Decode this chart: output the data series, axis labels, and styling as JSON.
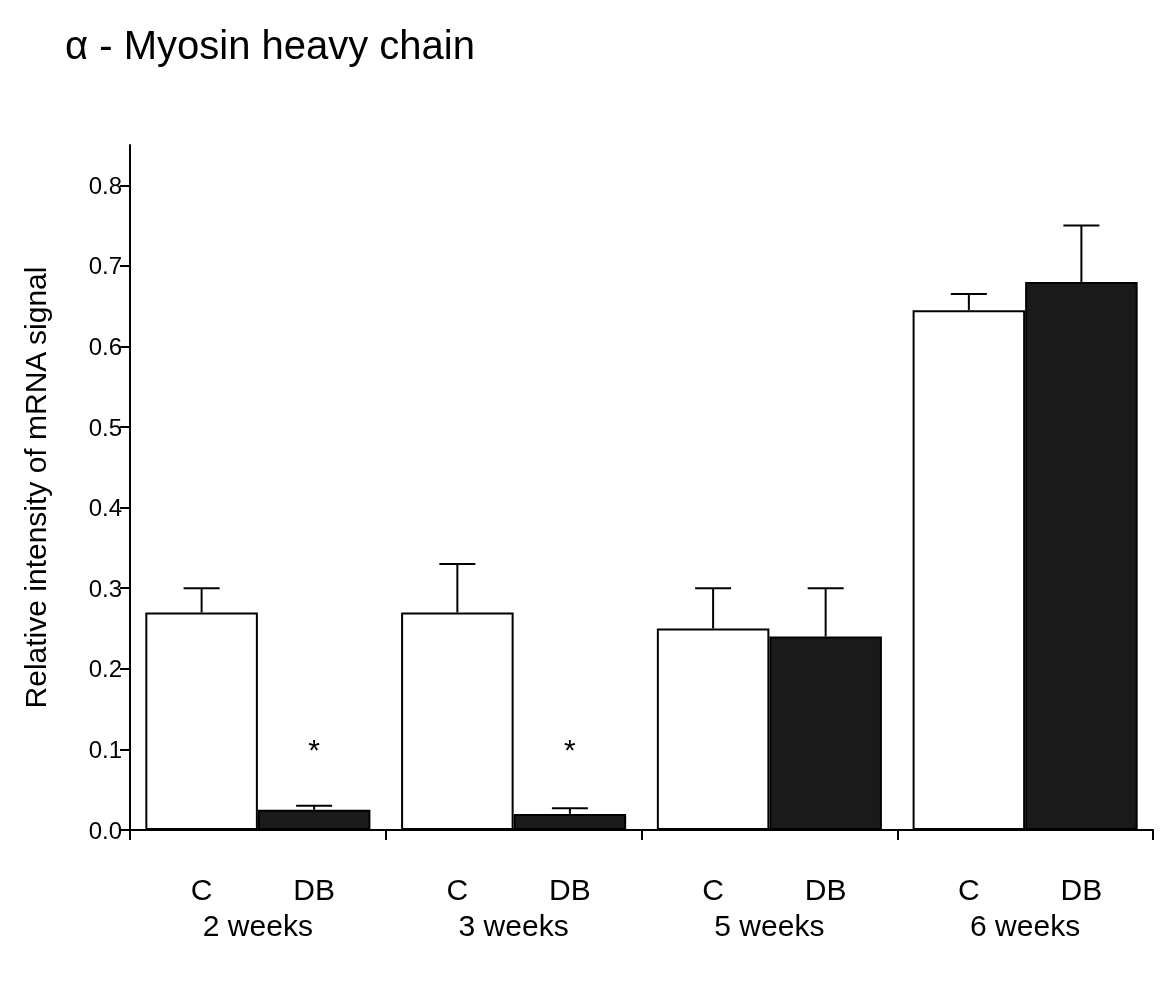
{
  "chart_data": {
    "type": "bar",
    "title": "α - Myosin heavy chain",
    "ylabel": "Relative intensity of mRNA signal",
    "categories": [
      "2 weeks",
      "3 weeks",
      "5 weeks",
      "6 weeks"
    ],
    "series": [
      {
        "name": "C",
        "color": "#ffffff",
        "values": [
          0.27,
          0.27,
          0.25,
          0.645
        ],
        "errors": [
          [
            0.27,
            0.3
          ],
          [
            0.27,
            0.33
          ],
          [
            0.25,
            0.3
          ],
          [
            0.645,
            0.665
          ]
        ]
      },
      {
        "name": "DB",
        "color": "#1a1a1a",
        "values": [
          0.025,
          0.02,
          0.24,
          0.68
        ],
        "errors": [
          [
            0.025,
            0.03
          ],
          [
            0.02,
            0.027
          ],
          [
            0.24,
            0.3
          ],
          [
            0.68,
            0.75
          ]
        ]
      }
    ],
    "ylim": [
      0,
      0.85
    ],
    "yticks": [
      {
        "value": 0,
        "label": "0.0"
      },
      0.1,
      0.2,
      0.3,
      0.4,
      0.5,
      0.6,
      0.7,
      0.8
    ],
    "annotations": [
      {
        "text": "*",
        "x": "2 weeks",
        "y": 0.1
      },
      {
        "text": "*",
        "x": "3 weeks",
        "y": 0.1
      }
    ],
    "grid": false,
    "legend": false
  }
}
